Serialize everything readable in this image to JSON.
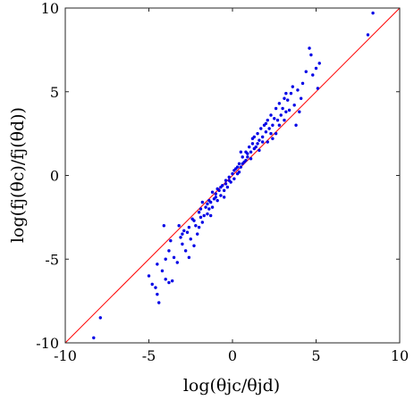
{
  "chart_data": {
    "type": "scatter",
    "xlabel": "log(θjc/θjd)",
    "ylabel": "log(fj(θc)/fj(θd))",
    "xlim": [
      -10,
      10
    ],
    "ylim": [
      -10,
      10
    ],
    "xticks": [
      "-10",
      "-5",
      "0",
      "5",
      "10"
    ],
    "yticks": [
      "-10",
      "-5",
      "0",
      "5",
      "10"
    ],
    "grid": false,
    "legend": "none",
    "point_color": "#0000e6",
    "reference_line": {
      "type": "y = x",
      "from": [
        -10,
        -10
      ],
      "to": [
        10,
        10
      ],
      "color": "#ff0000"
    },
    "points": [
      [
        8.4,
        9.7
      ],
      [
        8.1,
        8.4
      ],
      [
        -8.3,
        -9.7
      ],
      [
        -7.9,
        -8.5
      ],
      [
        -5.0,
        -6.0
      ],
      [
        -4.8,
        -6.5
      ],
      [
        -4.6,
        -6.7
      ],
      [
        -4.5,
        -7.1
      ],
      [
        -4.4,
        -7.6
      ],
      [
        -4.5,
        -5.3
      ],
      [
        -4.2,
        -5.7
      ],
      [
        -4.0,
        -6.2
      ],
      [
        -3.8,
        -6.4
      ],
      [
        -3.6,
        -6.3
      ],
      [
        -4.0,
        -5.0
      ],
      [
        -3.8,
        -4.5
      ],
      [
        -3.5,
        -4.9
      ],
      [
        -3.3,
        -5.2
      ],
      [
        -3.1,
        -3.7
      ],
      [
        -3.0,
        -4.1
      ],
      [
        -2.8,
        -4.5
      ],
      [
        -2.6,
        -4.9
      ],
      [
        -2.7,
        -3.4
      ],
      [
        -2.5,
        -3.8
      ],
      [
        -2.3,
        -4.2
      ],
      [
        -2.2,
        -3.0
      ],
      [
        -2.1,
        -3.5
      ],
      [
        -2.0,
        -3.1
      ],
      [
        -1.9,
        -2.5
      ],
      [
        -1.8,
        -2.8
      ],
      [
        -1.7,
        -2.4
      ],
      [
        -1.6,
        -1.9
      ],
      [
        -1.5,
        -2.3
      ],
      [
        -1.4,
        -2.0
      ],
      [
        -1.3,
        -1.6
      ],
      [
        -1.2,
        -1.9
      ],
      [
        -1.1,
        -1.4
      ],
      [
        -1.0,
        -1.1
      ],
      [
        -0.9,
        -1.5
      ],
      [
        -0.8,
        -0.9
      ],
      [
        -0.7,
        -1.2
      ],
      [
        -0.6,
        -0.6
      ],
      [
        -0.5,
        -0.9
      ],
      [
        -0.4,
        -0.3
      ],
      [
        -0.3,
        -0.7
      ],
      [
        -0.2,
        -0.1
      ],
      [
        -0.1,
        -0.4
      ],
      [
        0.0,
        0.1
      ],
      [
        0.1,
        -0.2
      ],
      [
        0.2,
        0.4
      ],
      [
        0.3,
        0.1
      ],
      [
        0.4,
        0.7
      ],
      [
        0.5,
        0.5
      ],
      [
        0.6,
        1.1
      ],
      [
        0.7,
        0.8
      ],
      [
        0.8,
        1.4
      ],
      [
        0.9,
        1.1
      ],
      [
        1.0,
        1.7
      ],
      [
        1.1,
        1.4
      ],
      [
        1.2,
        1.9
      ],
      [
        1.3,
        2.3
      ],
      [
        1.4,
        1.7
      ],
      [
        1.5,
        2.5
      ],
      [
        1.6,
        2.1
      ],
      [
        1.7,
        2.8
      ],
      [
        1.8,
        2.3
      ],
      [
        1.9,
        3.0
      ],
      [
        2.0,
        2.6
      ],
      [
        2.1,
        3.3
      ],
      [
        2.2,
        2.8
      ],
      [
        2.3,
        3.6
      ],
      [
        2.4,
        3.0
      ],
      [
        2.5,
        3.4
      ],
      [
        2.6,
        4.0
      ],
      [
        2.7,
        3.3
      ],
      [
        2.8,
        4.3
      ],
      [
        2.9,
        3.6
      ],
      [
        3.0,
        4.0
      ],
      [
        3.1,
        4.6
      ],
      [
        3.2,
        3.8
      ],
      [
        3.3,
        4.5
      ],
      [
        3.5,
        4.9
      ],
      [
        3.7,
        4.2
      ],
      [
        3.9,
        5.1
      ],
      [
        4.1,
        4.6
      ],
      [
        4.2,
        5.5
      ],
      [
        3.8,
        3.0
      ],
      [
        4.4,
        6.2
      ],
      [
        4.6,
        7.6
      ],
      [
        4.7,
        7.2
      ],
      [
        4.8,
        6.0
      ],
      [
        5.0,
        6.4
      ],
      [
        5.2,
        6.7
      ],
      [
        5.1,
        5.2
      ],
      [
        -3.2,
        -3.0
      ],
      [
        -2.9,
        -3.3
      ],
      [
        -2.4,
        -2.6
      ],
      [
        -1.9,
        -2.0
      ],
      [
        -1.4,
        -1.5
      ],
      [
        -0.9,
        -0.8
      ],
      [
        -0.4,
        -0.5
      ],
      [
        0.1,
        0.3
      ],
      [
        0.6,
        0.7
      ],
      [
        1.1,
        1.0
      ],
      [
        1.6,
        1.5
      ],
      [
        2.1,
        2.0
      ],
      [
        2.6,
        2.5
      ],
      [
        3.1,
        3.3
      ],
      [
        -3.7,
        -3.9
      ],
      [
        -2.0,
        -2.2
      ],
      [
        -1.0,
        -1.3
      ],
      [
        0.3,
        0.5
      ],
      [
        1.3,
        1.6
      ],
      [
        2.3,
        2.5
      ],
      [
        -1.5,
        -1.7
      ],
      [
        -0.7,
        -0.7
      ],
      [
        0.8,
        0.9
      ],
      [
        1.8,
        2.0
      ],
      [
        2.8,
        3.0
      ],
      [
        -2.3,
        -2.7
      ],
      [
        -1.2,
        -1.0
      ],
      [
        -0.2,
        -0.3
      ],
      [
        0.4,
        0.2
      ],
      [
        1.5,
        1.9
      ],
      [
        2.4,
        2.2
      ],
      [
        3.4,
        3.9
      ],
      [
        -3.0,
        -3.5
      ],
      [
        -1.8,
        -1.6
      ],
      [
        0.9,
        1.3
      ],
      [
        -4.1,
        -3.0
      ],
      [
        3.6,
        5.3
      ],
      [
        4.0,
        3.8
      ],
      [
        2.0,
        3.1
      ],
      [
        -0.5,
        -1.3
      ],
      [
        0.5,
        1.4
      ],
      [
        1.2,
        2.2
      ],
      [
        -1.3,
        -2.4
      ],
      [
        -2.6,
        -3.1
      ],
      [
        3.2,
        4.9
      ]
    ]
  }
}
